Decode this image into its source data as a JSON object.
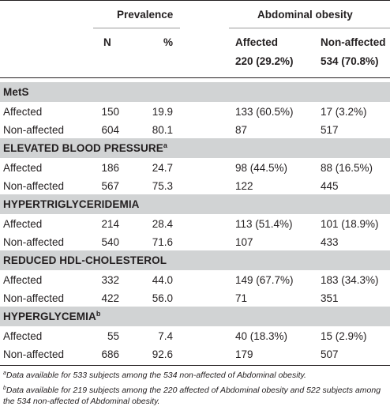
{
  "header": {
    "prevalence": "Prevalence",
    "abdominal_obesity": "Abdominal obesity",
    "n": "N",
    "pct": "%",
    "affected": "Affected",
    "affected_count": "220 (29.2%)",
    "non_affected": "Non-affected",
    "non_affected_count": "534 (70.8%)"
  },
  "sections": [
    {
      "title": "MetS",
      "sup": "",
      "rows": [
        {
          "label": "Affected",
          "n": "150",
          "pct": "19.9",
          "affected": "133 (60.5%)",
          "non_affected": "17 (3.2%)"
        },
        {
          "label": "Non-affected",
          "n": "604",
          "pct": "80.1",
          "affected": "87",
          "non_affected": "517"
        }
      ]
    },
    {
      "title": "ELEVATED BLOOD PRESSURE",
      "sup": "a",
      "rows": [
        {
          "label": "Affected",
          "n": "186",
          "pct": "24.7",
          "affected": "98 (44.5%)",
          "non_affected": "88 (16.5%)"
        },
        {
          "label": "Non-affected",
          "n": "567",
          "pct": "75.3",
          "affected": "122",
          "non_affected": "445"
        }
      ]
    },
    {
      "title": "HYPERTRIGLYCERIDEMIA",
      "sup": "",
      "rows": [
        {
          "label": "Affected",
          "n": "214",
          "pct": "28.4",
          "affected": "113 (51.4%)",
          "non_affected": "101 (18.9%)"
        },
        {
          "label": "Non-affected",
          "n": "540",
          "pct": "71.6",
          "affected": "107",
          "non_affected": "433"
        }
      ]
    },
    {
      "title": "REDUCED HDL-CHOLESTEROL",
      "sup": "",
      "rows": [
        {
          "label": "Affected",
          "n": "332",
          "pct": "44.0",
          "affected": "149 (67.7%)",
          "non_affected": "183 (34.3%)"
        },
        {
          "label": "Non-affected",
          "n": "422",
          "pct": "56.0",
          "affected": "71",
          "non_affected": "351"
        }
      ]
    },
    {
      "title": "HYPERGLYCEMIA",
      "sup": "b",
      "rows": [
        {
          "label": "Affected",
          "n": "55",
          "pct": "7.4",
          "affected": "40 (18.3%)",
          "non_affected": "15 (2.9%)"
        },
        {
          "label": "Non-affected",
          "n": "686",
          "pct": "92.6",
          "affected": "179",
          "non_affected": "507"
        }
      ]
    }
  ],
  "footnotes": [
    {
      "mark": "a",
      "text": "Data available for 533 subjects among the 534 non-affected of Abdominal obesity."
    },
    {
      "mark": "b",
      "text": "Data available for 219 subjects among the 220 affected of Abdominal obesity and 522 subjects among the 534 non-affected of Abdominal obesity."
    }
  ]
}
